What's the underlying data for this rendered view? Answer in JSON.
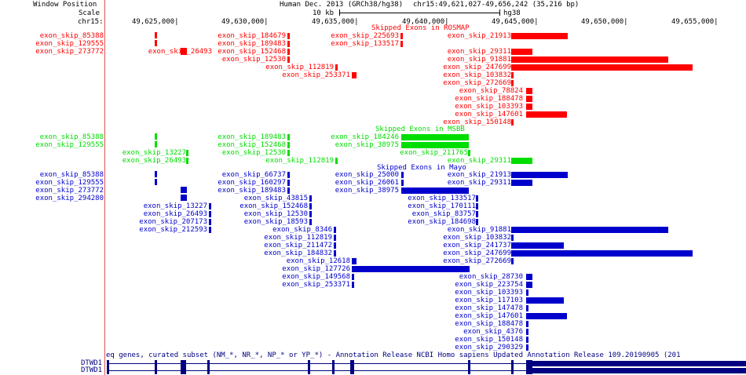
{
  "browser": {
    "left_header": [
      "Window Position",
      "Scale",
      "chr15:"
    ],
    "assembly": "Human Dec. 2013 (GRCh38/hg38)",
    "position": "chr15:49,621,027-49,656,242 (35,216 bp)",
    "scale_value": "10 kb",
    "scale_assembly": "hg38",
    "ruler": [
      "49,625,000|",
      "49,630,000|",
      "49,635,000|",
      "49,640,000|",
      "49,645,000|",
      "49,650,000|",
      "49,655,000|"
    ]
  },
  "colors": {
    "rosmap": "#ff0000",
    "msbb": "#00dd00",
    "mayo": "#0000cc",
    "gene": "#000080",
    "separator": "#e05050"
  },
  "tracks": {
    "rosmap": {
      "title": "Skipped Exons in ROSMAP",
      "side_labels": [
        "exon_skip_85388",
        "exon_skip_129555",
        "exon_skip_273772"
      ],
      "labels": [
        "exon_skip_184679",
        "exon_skip_225693",
        "exon_skip_21913",
        "exon_skip_189483",
        "exon_skip_133517",
        "exon_skip_26493",
        "exon_skip_152468",
        "exon_skip_29311",
        "exon_skip_12530",
        "exon_skip_91881",
        "exon_skip_112819",
        "exon_skip_247699",
        "exon_skip_253371",
        "exon_skip_103832",
        "exon_skip_272669",
        "exon_skip_78824",
        "exon_skip_188478",
        "exon_skip_103393",
        "exon_skip_147601",
        "exon_skip_150148"
      ]
    },
    "msbb": {
      "title": "Skipped Exons in MSBB",
      "side_labels": [
        "exon_skip_85388",
        "exon_skip_129555"
      ],
      "labels": [
        "exon_skip_189483",
        "exon_skip_184246",
        "exon_skip_152468",
        "exon_skip_38975",
        "exon_skip_13227",
        "exon_skip_12530",
        "exon_skip_211765",
        "exon_skip_26493",
        "exon_skip_112819",
        "exon_skip_29311"
      ]
    },
    "mayo": {
      "title": "Skipped Exons in Mayo",
      "side_labels": [
        "exon_skip_85388",
        "exon_skip_129555",
        "exon_skip_273772",
        "exon_skip_294280"
      ],
      "labels": [
        "exon_skip_66737",
        "exon_skip_25000",
        "exon_skip_21913",
        "exon_skip_160297",
        "exon_skip_26061",
        "exon_skip_29311",
        "exon_skip_189483",
        "exon_skip_38975",
        "exon_skip_43815",
        "exon_skip_133517",
        "exon_skip_13227",
        "exon_skip_152468",
        "exon_skip_170111",
        "exon_skip_26493",
        "exon_skip_12530",
        "exon_skip_83757",
        "exon_skip_207173",
        "exon_skip_18593",
        "exon_skip_184698",
        "exon_skip_212593",
        "exon_skip_8346",
        "exon_skip_91881",
        "exon_skip_112819",
        "exon_skip_103832",
        "exon_skip_211472",
        "exon_skip_241737",
        "exon_skip_184832",
        "exon_skip_247699",
        "exon_skip_12618",
        "exon_skip_272669",
        "exon_skip_127726",
        "exon_skip_149568",
        "exon_skip_28730",
        "exon_skip_253371",
        "exon_skip_223754",
        "exon_skip_103393",
        "exon_skip_117103",
        "exon_skip_147478",
        "exon_skip_147601",
        "exon_skip_188478",
        "exon_skip_4376",
        "exon_skip_150148",
        "exon_skip_290329"
      ]
    }
  },
  "refseq": {
    "title": "eq genes, curated subset (NM_*, NR_*, NP_* or YP_*) - Annotation Release NCBI Homo sapiens Updated Annotation Release 109.20190905 (201",
    "genes": [
      "DTWD1",
      "DTWD1"
    ]
  }
}
